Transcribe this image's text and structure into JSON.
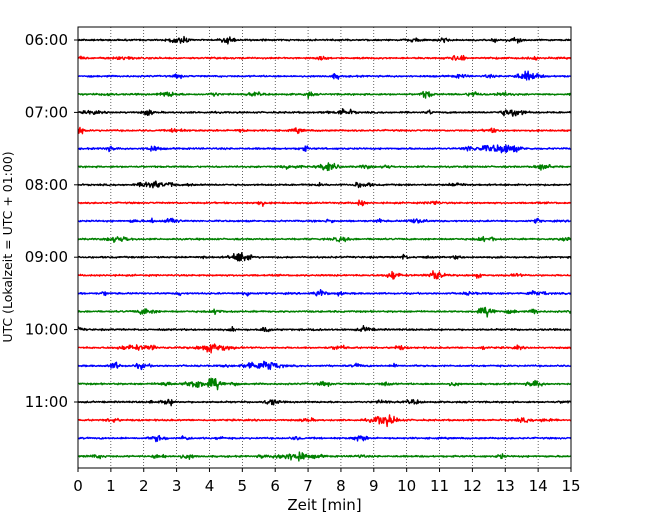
{
  "chart_data": {
    "type": "line",
    "title": "",
    "xlabel": "Zeit  [min]",
    "ylabel": "UTC (Lokalzeit = UTC + 01:00)",
    "xlim": [
      0,
      15
    ],
    "x_ticks": [
      0,
      1,
      2,
      3,
      4,
      5,
      6,
      7,
      8,
      9,
      10,
      11,
      12,
      13,
      14,
      15
    ],
    "y_tick_labels": [
      "06:00",
      "07:00",
      "08:00",
      "09:00",
      "10:00",
      "11:00"
    ],
    "trace_start_times": [
      "06:00",
      "06:15",
      "06:30",
      "06:45",
      "07:00",
      "07:15",
      "07:30",
      "07:45",
      "08:00",
      "08:15",
      "08:30",
      "08:45",
      "09:00",
      "09:15",
      "09:30",
      "09:45",
      "10:00",
      "10:15",
      "10:30",
      "10:45",
      "11:00",
      "11:15",
      "11:30",
      "11:45"
    ],
    "trace_interval_minutes": 15,
    "trace_color_cycle": [
      "#000000",
      "#ff0000",
      "#0000ff",
      "#008000"
    ],
    "vertical_grid": "dotted, at every minute",
    "legend": "none"
  }
}
